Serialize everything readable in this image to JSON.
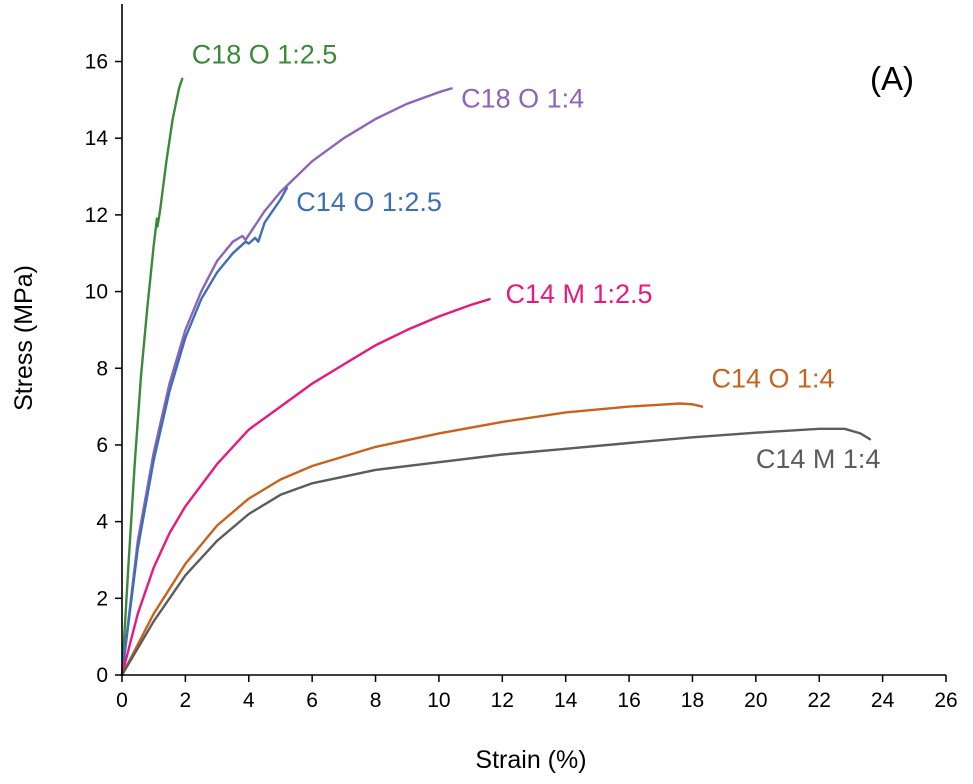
{
  "chart_data": {
    "type": "line",
    "panel_label": "(A)",
    "xlabel": "Strain (%)",
    "ylabel": "Stress (MPa)",
    "xlim": [
      0,
      26
    ],
    "ylim": [
      0,
      17.5
    ],
    "xticks": [
      0,
      2,
      4,
      6,
      8,
      10,
      12,
      14,
      16,
      18,
      20,
      22,
      24,
      26
    ],
    "yticks": [
      0,
      2,
      4,
      6,
      8,
      10,
      12,
      14,
      16
    ],
    "grid": false,
    "series": [
      {
        "name": "C18 O 1:2.5",
        "color": "#3a8a3a",
        "label_at": [
          2.2,
          15.95
        ],
        "x": [
          0,
          0.2,
          0.4,
          0.6,
          0.8,
          1.0,
          1.1,
          1.12,
          1.2,
          1.4,
          1.6,
          1.8,
          1.9
        ],
        "y": [
          0,
          2.8,
          5.5,
          7.8,
          9.6,
          11.2,
          11.9,
          11.7,
          12.1,
          13.4,
          14.5,
          15.3,
          15.55
        ]
      },
      {
        "name": "C18 O 1:4",
        "color": "#8e63b8",
        "label_at": [
          10.7,
          14.8
        ],
        "x": [
          0,
          0.5,
          1,
          1.5,
          2,
          2.5,
          3,
          3.5,
          3.8,
          3.9,
          4.5,
          5,
          6,
          7,
          8,
          9,
          10,
          10.4
        ],
        "y": [
          0,
          3.5,
          5.8,
          7.6,
          9.0,
          10.0,
          10.8,
          11.3,
          11.45,
          11.35,
          12.1,
          12.6,
          13.4,
          14.0,
          14.5,
          14.9,
          15.2,
          15.3
        ]
      },
      {
        "name": "C14 O 1:2.5",
        "color": "#3d6fb6",
        "label_at": [
          5.5,
          12.1
        ],
        "x": [
          0,
          0.5,
          1,
          1.5,
          2,
          2.5,
          3,
          3.5,
          3.9,
          4.0,
          4.2,
          4.3,
          4.5,
          5,
          5.2
        ],
        "y": [
          0,
          3.3,
          5.6,
          7.4,
          8.8,
          9.8,
          10.5,
          11.0,
          11.3,
          11.25,
          11.4,
          11.3,
          11.8,
          12.4,
          12.7
        ]
      },
      {
        "name": "C14 M 1:2.5",
        "color": "#e8197e",
        "label_at": [
          12.1,
          9.7
        ],
        "x": [
          0,
          0.5,
          1,
          1.5,
          2,
          3,
          4,
          5,
          6,
          7,
          8,
          9,
          10,
          11,
          11.6
        ],
        "y": [
          0,
          1.6,
          2.8,
          3.7,
          4.4,
          5.5,
          6.4,
          7.0,
          7.6,
          8.1,
          8.6,
          9.0,
          9.35,
          9.65,
          9.8
        ]
      },
      {
        "name": "C14 O 1:4",
        "color": "#c8621e",
        "label_at": [
          18.6,
          7.5
        ],
        "x": [
          0,
          1,
          2,
          3,
          4,
          5,
          6,
          8,
          10,
          12,
          14,
          16,
          17,
          17.6,
          18,
          18.3
        ],
        "y": [
          0,
          1.6,
          2.9,
          3.9,
          4.6,
          5.1,
          5.45,
          5.95,
          6.3,
          6.6,
          6.85,
          7.0,
          7.05,
          7.08,
          7.06,
          7.0
        ]
      },
      {
        "name": "C14 M 1:4",
        "color": "#5c5c5c",
        "label_at": [
          20.0,
          5.4
        ],
        "x": [
          0,
          1,
          2,
          3,
          4,
          5,
          6,
          8,
          10,
          12,
          14,
          16,
          18,
          20,
          22,
          22.8,
          23.3,
          23.6
        ],
        "y": [
          0,
          1.4,
          2.6,
          3.5,
          4.2,
          4.7,
          5.0,
          5.35,
          5.55,
          5.75,
          5.9,
          6.05,
          6.2,
          6.32,
          6.42,
          6.42,
          6.3,
          6.15
        ]
      }
    ]
  }
}
